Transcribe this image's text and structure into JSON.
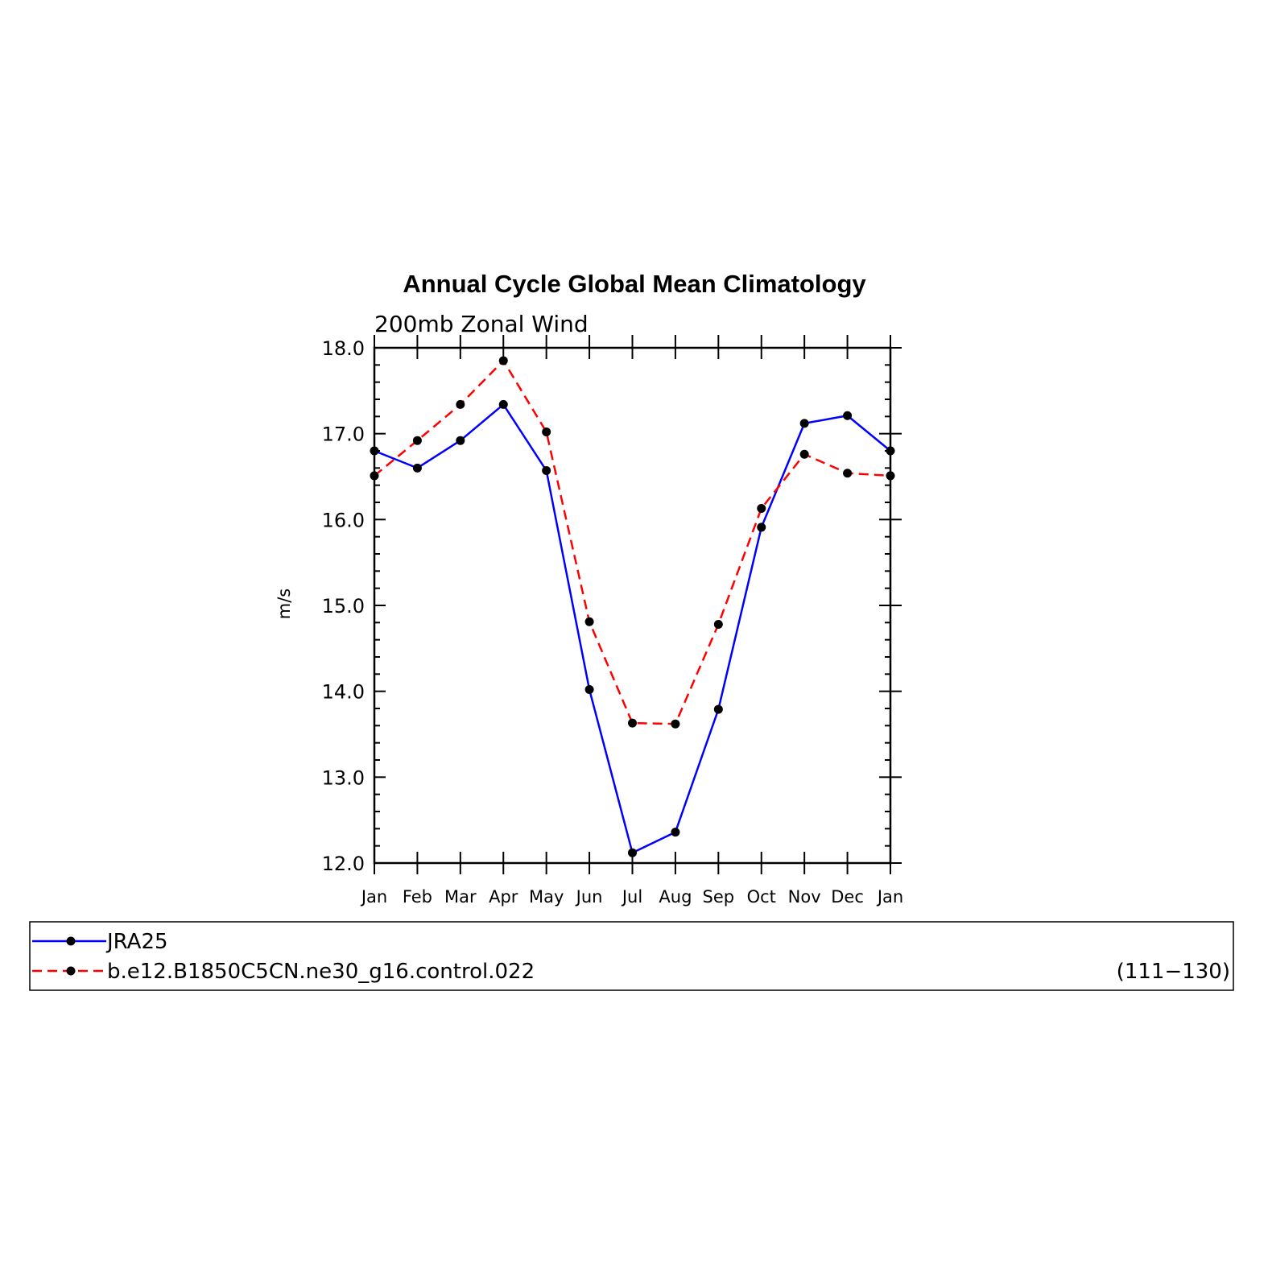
{
  "chart_data": {
    "type": "line",
    "title": "Annual Cycle Global Mean Climatology",
    "subtitle": "200mb Zonal Wind",
    "ylabel": "m/s",
    "xlabel": "",
    "categories": [
      "Jan",
      "Feb",
      "Mar",
      "Apr",
      "May",
      "Jun",
      "Jul",
      "Aug",
      "Sep",
      "Oct",
      "Nov",
      "Dec",
      "Jan"
    ],
    "ylim": [
      12.0,
      18.0
    ],
    "yticks": [
      "12.0",
      "13.0",
      "14.0",
      "15.0",
      "16.0",
      "17.0",
      "18.0"
    ],
    "series": [
      {
        "name": "JRA25",
        "color": "#0000ff",
        "dash": "solid",
        "values": [
          16.8,
          16.6,
          16.92,
          17.34,
          16.57,
          14.02,
          12.12,
          12.36,
          13.79,
          15.91,
          17.12,
          17.21,
          16.8
        ]
      },
      {
        "name": "b.e12.B1850C5CN.ne30_g16.control.022",
        "color": "#ff0000",
        "dash": "dashed",
        "values": [
          16.51,
          16.92,
          17.34,
          17.85,
          17.02,
          14.81,
          13.63,
          13.62,
          14.78,
          16.13,
          16.76,
          16.54,
          16.51
        ]
      }
    ],
    "legend": {
      "position": "bottom",
      "note": "(111−130)"
    },
    "grid": false
  }
}
